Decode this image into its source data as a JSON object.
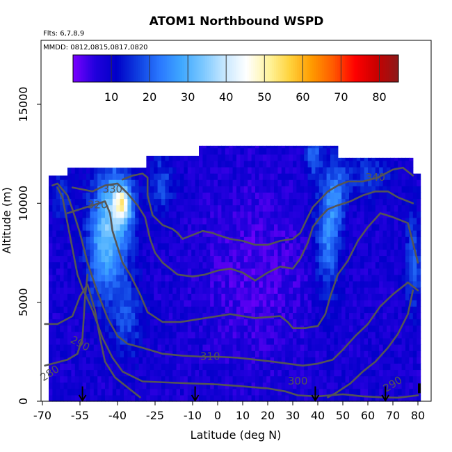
{
  "chart_data": {
    "type": "heatmap",
    "title": "ATOM1 Northbound WSPD",
    "subtitle_flights": "Flts: 6,7,8,9",
    "subtitle_dates": "MMDD: 0812,0815,0817,0820",
    "xlabel": "Latitude (deg N)",
    "ylabel": "Altitude (m)",
    "xlim": [
      -70,
      82
    ],
    "ylim": [
      0,
      17500
    ],
    "x_ticks": [
      -70,
      -55,
      -40,
      -25,
      -10,
      0,
      10,
      20,
      30,
      40,
      50,
      60,
      70,
      80
    ],
    "y_ticks": [
      0,
      5000,
      10000,
      15000
    ],
    "colorbar": {
      "min": 0,
      "max": 85,
      "ticks": [
        10,
        20,
        30,
        40,
        50,
        60,
        70,
        80
      ],
      "colors": [
        "#7a00ff",
        "#2200dd",
        "#0000c8",
        "#0f3fe0",
        "#2a78ff",
        "#3fa8ff",
        "#7cc8ff",
        "#c8e8ff",
        "#ffffff",
        "#fff4a0",
        "#ffd23c",
        "#ff9a00",
        "#ff5a00",
        "#ff0000",
        "#c80000",
        "#8b1a1a"
      ]
    },
    "theta_contours_K": [
      280,
      290,
      290,
      300,
      310,
      320,
      330,
      340
    ],
    "contour_labels": [
      "280",
      "290",
      "290",
      "300",
      "310",
      "320",
      "330",
      "340"
    ],
    "ascent_markers_lat": [
      -54,
      -9,
      39,
      67
    ],
    "data_extent": {
      "lat": [
        -69,
        81
      ],
      "alt": [
        0,
        13000
      ]
    }
  }
}
